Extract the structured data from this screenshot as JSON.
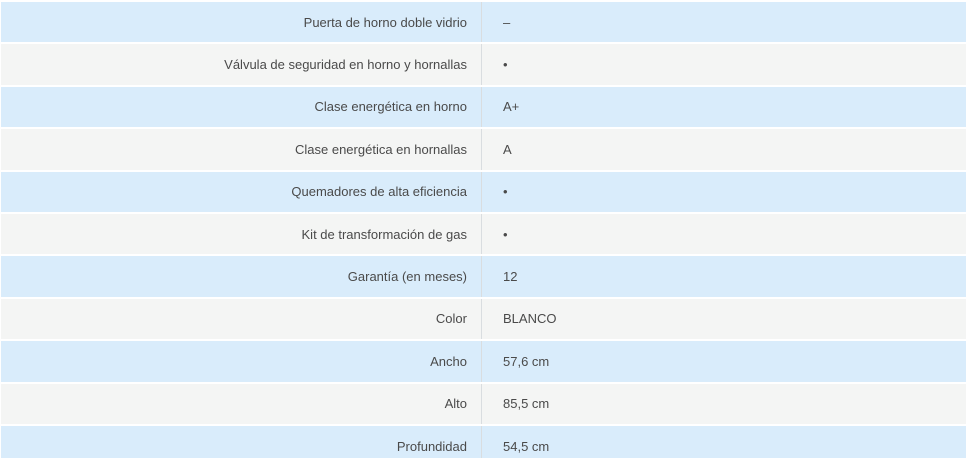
{
  "table": {
    "name": "product-specifications",
    "rows": [
      {
        "label": "Puerta de horno doble vidrio",
        "value": "–"
      },
      {
        "label": "Válvula de seguridad en horno y hornallas",
        "value": "•"
      },
      {
        "label": "Clase energética en horno",
        "value": "A+"
      },
      {
        "label": "Clase energética en hornallas",
        "value": "A"
      },
      {
        "label": "Quemadores de alta eficiencia",
        "value": "•"
      },
      {
        "label": "Kit de transformación de gas",
        "value": "•"
      },
      {
        "label": "Garantía (en meses)",
        "value": "12"
      },
      {
        "label": "Color",
        "value": "BLANCO"
      },
      {
        "label": "Ancho",
        "value": "57,6 cm"
      },
      {
        "label": "Alto",
        "value": "85,5 cm"
      },
      {
        "label": "Profundidad",
        "value": "54,5 cm"
      }
    ],
    "colors": {
      "row_blue": "#d9ecfb",
      "row_gray": "#f4f5f4",
      "column_divider": "#d9dde0",
      "text": "#4a4a4a"
    }
  }
}
